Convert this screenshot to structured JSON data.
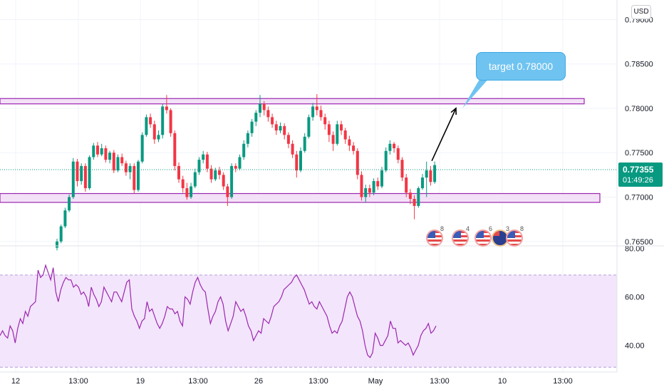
{
  "currency": "USD",
  "current_price": "0.77355",
  "countdown": "01:49:26",
  "annotation": "target 0.78000",
  "event_badges": [
    {
      "icon": "us-flag-icon",
      "count": "8"
    },
    {
      "icon": "us-flag-icon",
      "count": "4"
    },
    {
      "icon": "us-flag-icon",
      "count": "6"
    },
    {
      "icon": "au-flag-icon",
      "count": "3"
    },
    {
      "icon": "us-flag-icon",
      "count": "8"
    }
  ],
  "colors": {
    "up": "#089981",
    "down": "#f23645",
    "zone_fill": "#f3e1f7",
    "zone_stroke": "#9c27b0",
    "rsi_line": "#9c27b0",
    "rsi_band": "#f3e5fb",
    "callout": "#6fc3f0",
    "arrow": "#000000"
  },
  "chart_data": [
    {
      "type": "candlestick",
      "y_ticks": [
        "0.79000",
        "0.78500",
        "0.78000",
        "0.77500",
        "0.77000",
        "0.76500"
      ],
      "ylim": [
        0.7645,
        0.7918
      ],
      "x_ticks": [
        "12",
        "13:00",
        "19",
        "13:00",
        "26",
        "13:00",
        "May",
        "13:00",
        "10",
        "13:00"
      ],
      "zones": [
        {
          "low": 0.7805,
          "high": 0.7811
        },
        {
          "low": 0.7694,
          "high": 0.7704
        }
      ],
      "candles": [
        [
          0.7643,
          0.765,
          0.764,
          0.7653
        ],
        [
          0.765,
          0.7667,
          0.7648,
          0.7669
        ],
        [
          0.7667,
          0.7685,
          0.7665,
          0.7688
        ],
        [
          0.7685,
          0.77,
          0.7683,
          0.7703
        ],
        [
          0.77,
          0.774,
          0.7698,
          0.7744
        ],
        [
          0.774,
          0.7718,
          0.7712,
          0.7743
        ],
        [
          0.7718,
          0.7735,
          0.7714,
          0.7738
        ],
        [
          0.7735,
          0.771,
          0.7706,
          0.7738
        ],
        [
          0.771,
          0.7745,
          0.7708,
          0.7747
        ],
        [
          0.7745,
          0.7758,
          0.7742,
          0.7761
        ],
        [
          0.7758,
          0.7748,
          0.7745,
          0.7762
        ],
        [
          0.7748,
          0.7755,
          0.7746,
          0.776
        ],
        [
          0.7755,
          0.7742,
          0.7739,
          0.7758
        ],
        [
          0.7742,
          0.775,
          0.7738,
          0.7752
        ],
        [
          0.775,
          0.773,
          0.7727,
          0.7753
        ],
        [
          0.773,
          0.7745,
          0.7728,
          0.7748
        ],
        [
          0.7745,
          0.7738,
          0.7735,
          0.7749
        ],
        [
          0.7738,
          0.7728,
          0.7724,
          0.7741
        ],
        [
          0.7728,
          0.7735,
          0.772,
          0.7738
        ],
        [
          0.7735,
          0.7708,
          0.7704,
          0.7738
        ],
        [
          0.7708,
          0.774,
          0.7706,
          0.7742
        ],
        [
          0.774,
          0.777,
          0.7738,
          0.7773
        ],
        [
          0.777,
          0.779,
          0.7768,
          0.7793
        ],
        [
          0.779,
          0.7782,
          0.7778,
          0.7794
        ],
        [
          0.7782,
          0.7765,
          0.776,
          0.7786
        ],
        [
          0.7765,
          0.777,
          0.7762,
          0.7775
        ],
        [
          0.777,
          0.7802,
          0.7766,
          0.7805
        ],
        [
          0.7802,
          0.7798,
          0.7794,
          0.7815
        ],
        [
          0.7798,
          0.7772,
          0.7768,
          0.78
        ],
        [
          0.7772,
          0.7735,
          0.773,
          0.7775
        ],
        [
          0.7735,
          0.772,
          0.7716,
          0.7739
        ],
        [
          0.772,
          0.771,
          0.7705,
          0.7724
        ],
        [
          0.771,
          0.77,
          0.7697,
          0.7716
        ],
        [
          0.77,
          0.7712,
          0.7698,
          0.7716
        ],
        [
          0.7712,
          0.7728,
          0.771,
          0.7732
        ],
        [
          0.7728,
          0.7742,
          0.7725,
          0.7745
        ],
        [
          0.7742,
          0.7748,
          0.7738,
          0.7752
        ],
        [
          0.7748,
          0.7732,
          0.7728,
          0.7751
        ],
        [
          0.7732,
          0.772,
          0.7716,
          0.7736
        ],
        [
          0.772,
          0.773,
          0.7718,
          0.7733
        ],
        [
          0.773,
          0.7725,
          0.772,
          0.7734
        ],
        [
          0.7725,
          0.7712,
          0.7708,
          0.7728
        ],
        [
          0.7712,
          0.77,
          0.769,
          0.7715
        ],
        [
          0.77,
          0.7735,
          0.7698,
          0.7738
        ],
        [
          0.7735,
          0.7732,
          0.7728,
          0.7738
        ],
        [
          0.7732,
          0.7745,
          0.773,
          0.7748
        ],
        [
          0.7745,
          0.776,
          0.7742,
          0.7764
        ],
        [
          0.776,
          0.7772,
          0.7756,
          0.7775
        ],
        [
          0.7772,
          0.7785,
          0.7768,
          0.7788
        ],
        [
          0.7785,
          0.7795,
          0.778,
          0.7798
        ],
        [
          0.7795,
          0.7805,
          0.779,
          0.7815
        ],
        [
          0.7805,
          0.7798,
          0.7792,
          0.7808
        ],
        [
          0.7798,
          0.779,
          0.7785,
          0.7802
        ],
        [
          0.779,
          0.7782,
          0.7778,
          0.7794
        ],
        [
          0.7782,
          0.7775,
          0.777,
          0.7786
        ],
        [
          0.7775,
          0.778,
          0.7772,
          0.7784
        ],
        [
          0.778,
          0.777,
          0.7765,
          0.7783
        ],
        [
          0.777,
          0.776,
          0.7755,
          0.7773
        ],
        [
          0.776,
          0.7748,
          0.7744,
          0.7764
        ],
        [
          0.7748,
          0.773,
          0.7722,
          0.7752
        ],
        [
          0.773,
          0.7752,
          0.7728,
          0.7756
        ],
        [
          0.7752,
          0.7768,
          0.775,
          0.7772
        ],
        [
          0.7768,
          0.779,
          0.7766,
          0.7793
        ],
        [
          0.779,
          0.7802,
          0.7786,
          0.7806
        ],
        [
          0.7802,
          0.7798,
          0.7792,
          0.7816
        ],
        [
          0.7798,
          0.779,
          0.7786,
          0.7803
        ],
        [
          0.779,
          0.7782,
          0.7776,
          0.7794
        ],
        [
          0.7782,
          0.777,
          0.7762,
          0.7786
        ],
        [
          0.777,
          0.776,
          0.7752,
          0.7774
        ],
        [
          0.776,
          0.7782,
          0.7758,
          0.7786
        ],
        [
          0.7782,
          0.7775,
          0.777,
          0.7786
        ],
        [
          0.7775,
          0.7765,
          0.776,
          0.7778
        ],
        [
          0.7765,
          0.7758,
          0.7752,
          0.7769
        ],
        [
          0.7758,
          0.7752,
          0.7748,
          0.7762
        ],
        [
          0.7752,
          0.7725,
          0.772,
          0.7755
        ],
        [
          0.7725,
          0.77,
          0.7696,
          0.7729
        ],
        [
          0.77,
          0.771,
          0.7694,
          0.7714
        ],
        [
          0.771,
          0.7705,
          0.77,
          0.7714
        ],
        [
          0.7705,
          0.7718,
          0.7702,
          0.7721
        ],
        [
          0.7718,
          0.7712,
          0.7708,
          0.7722
        ],
        [
          0.7712,
          0.773,
          0.771,
          0.7734
        ],
        [
          0.773,
          0.7752,
          0.7728,
          0.7756
        ],
        [
          0.7752,
          0.776,
          0.7748,
          0.7764
        ],
        [
          0.776,
          0.7755,
          0.775,
          0.7762
        ],
        [
          0.7755,
          0.7742,
          0.7738,
          0.7758
        ],
        [
          0.7742,
          0.7722,
          0.7718,
          0.7745
        ],
        [
          0.7722,
          0.7705,
          0.77,
          0.7726
        ],
        [
          0.7705,
          0.7698,
          0.7692,
          0.7709
        ],
        [
          0.7698,
          0.769,
          0.7675,
          0.7702
        ],
        [
          0.769,
          0.771,
          0.7688,
          0.7712
        ],
        [
          0.771,
          0.7722,
          0.7708,
          0.7726
        ],
        [
          0.7722,
          0.773,
          0.77,
          0.774
        ],
        [
          0.773,
          0.7717,
          0.7713,
          0.7735
        ],
        [
          0.7717,
          0.7736,
          0.7715,
          0.774
        ]
      ],
      "target_price": 0.78
    },
    {
      "type": "line",
      "name": "",
      "y_ticks": [
        "80.00",
        "60.00",
        "40.00"
      ],
      "ylim": [
        29,
        81
      ],
      "band": [
        31,
        69
      ],
      "values": [
        44,
        46,
        44,
        43,
        48,
        46,
        41,
        47,
        51,
        49,
        54,
        52,
        56,
        57,
        58,
        71,
        68,
        69,
        73,
        70,
        67,
        72,
        62,
        58,
        63,
        66,
        68,
        67,
        67,
        64,
        65,
        64,
        61,
        62,
        60,
        56,
        64,
        61,
        59,
        56,
        58,
        64,
        62,
        60,
        58,
        62,
        62,
        60,
        58,
        62,
        66,
        67,
        55,
        52,
        50,
        47,
        50,
        51,
        58,
        54,
        55,
        52,
        49,
        47,
        49,
        52,
        56,
        55,
        55,
        53,
        54,
        50,
        48,
        60,
        59,
        57,
        62,
        66,
        68,
        65,
        63,
        62,
        55,
        49,
        52,
        54,
        58,
        60,
        57,
        50,
        46,
        49,
        52,
        58,
        56,
        54,
        55,
        52,
        48,
        46,
        42,
        44,
        46,
        45,
        51,
        50,
        49,
        52,
        56,
        57,
        58,
        60,
        63,
        64,
        65,
        66,
        68,
        69,
        67,
        65,
        63,
        60,
        57,
        58,
        56,
        55,
        58,
        56,
        54,
        52,
        48,
        45,
        46,
        45,
        48,
        50,
        55,
        60,
        62,
        60,
        56,
        52,
        50,
        46,
        40,
        36,
        35,
        37,
        45,
        43,
        40,
        40,
        42,
        44,
        50,
        47,
        47,
        41,
        42,
        41,
        40,
        41,
        39,
        36,
        38,
        40,
        44,
        46,
        47,
        49,
        45,
        46,
        48
      ]
    }
  ]
}
